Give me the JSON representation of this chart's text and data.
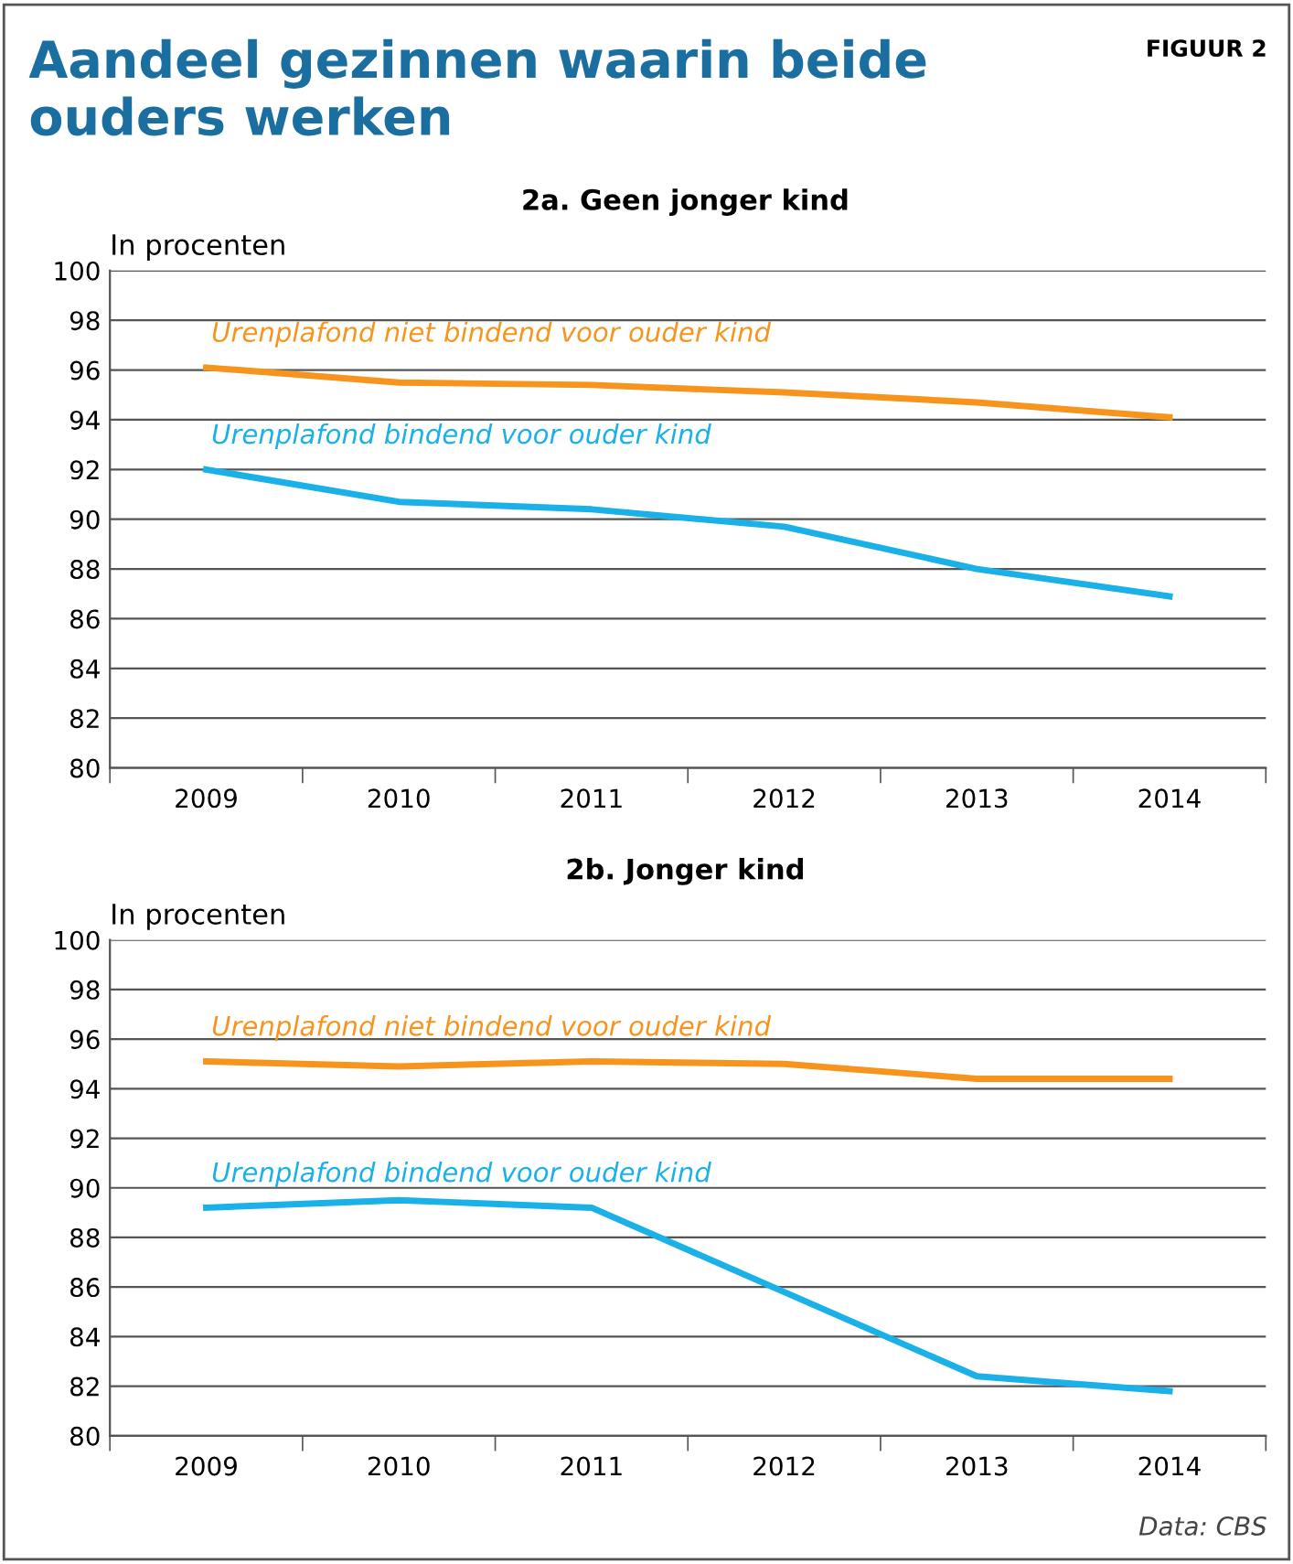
{
  "chart_data": [
    {
      "type": "line",
      "title": "Aandeel gezinnen waarin beide ouders werken",
      "subtitle": "2a. Geen jonger kind",
      "ylabel": "In procenten",
      "annotations": [
        "FIGUUR 2"
      ],
      "categories": [
        "2009",
        "2010",
        "2011",
        "2012",
        "2013",
        "2014"
      ],
      "series": [
        {
          "name": "Urenplafond niet bindend voor ouder kind",
          "color": "#f7941d",
          "values": [
            96.1,
            95.5,
            95.4,
            95.1,
            94.7,
            94.1
          ]
        },
        {
          "name": "Urenplafond bindend voor ouder kind",
          "color": "#1ab0e8",
          "values": [
            92.0,
            90.7,
            90.4,
            89.7,
            88.0,
            86.9
          ]
        }
      ],
      "ylim": [
        80,
        100
      ],
      "yticks": [
        80,
        82,
        84,
        86,
        88,
        90,
        92,
        94,
        96,
        98,
        100
      ],
      "grid": "y",
      "legend": false
    },
    {
      "type": "line",
      "title": "2b. Jonger kind",
      "ylabel": "In procenten",
      "annotations": [
        "Data: CBS"
      ],
      "categories": [
        "2009",
        "2010",
        "2011",
        "2012",
        "2013",
        "2014"
      ],
      "series": [
        {
          "name": "Urenplafond niet bindend voor ouder kind",
          "color": "#f7941d",
          "values": [
            95.1,
            94.9,
            95.1,
            95.0,
            94.4,
            94.4
          ]
        },
        {
          "name": "Urenplafond bindend voor ouder kind",
          "color": "#1ab0e8",
          "values": [
            89.2,
            89.5,
            89.2,
            85.8,
            82.4,
            81.8
          ]
        }
      ],
      "ylim": [
        80,
        100
      ],
      "yticks": [
        80,
        82,
        84,
        86,
        88,
        90,
        92,
        94,
        96,
        98,
        100
      ],
      "grid": "y",
      "legend": false
    }
  ]
}
